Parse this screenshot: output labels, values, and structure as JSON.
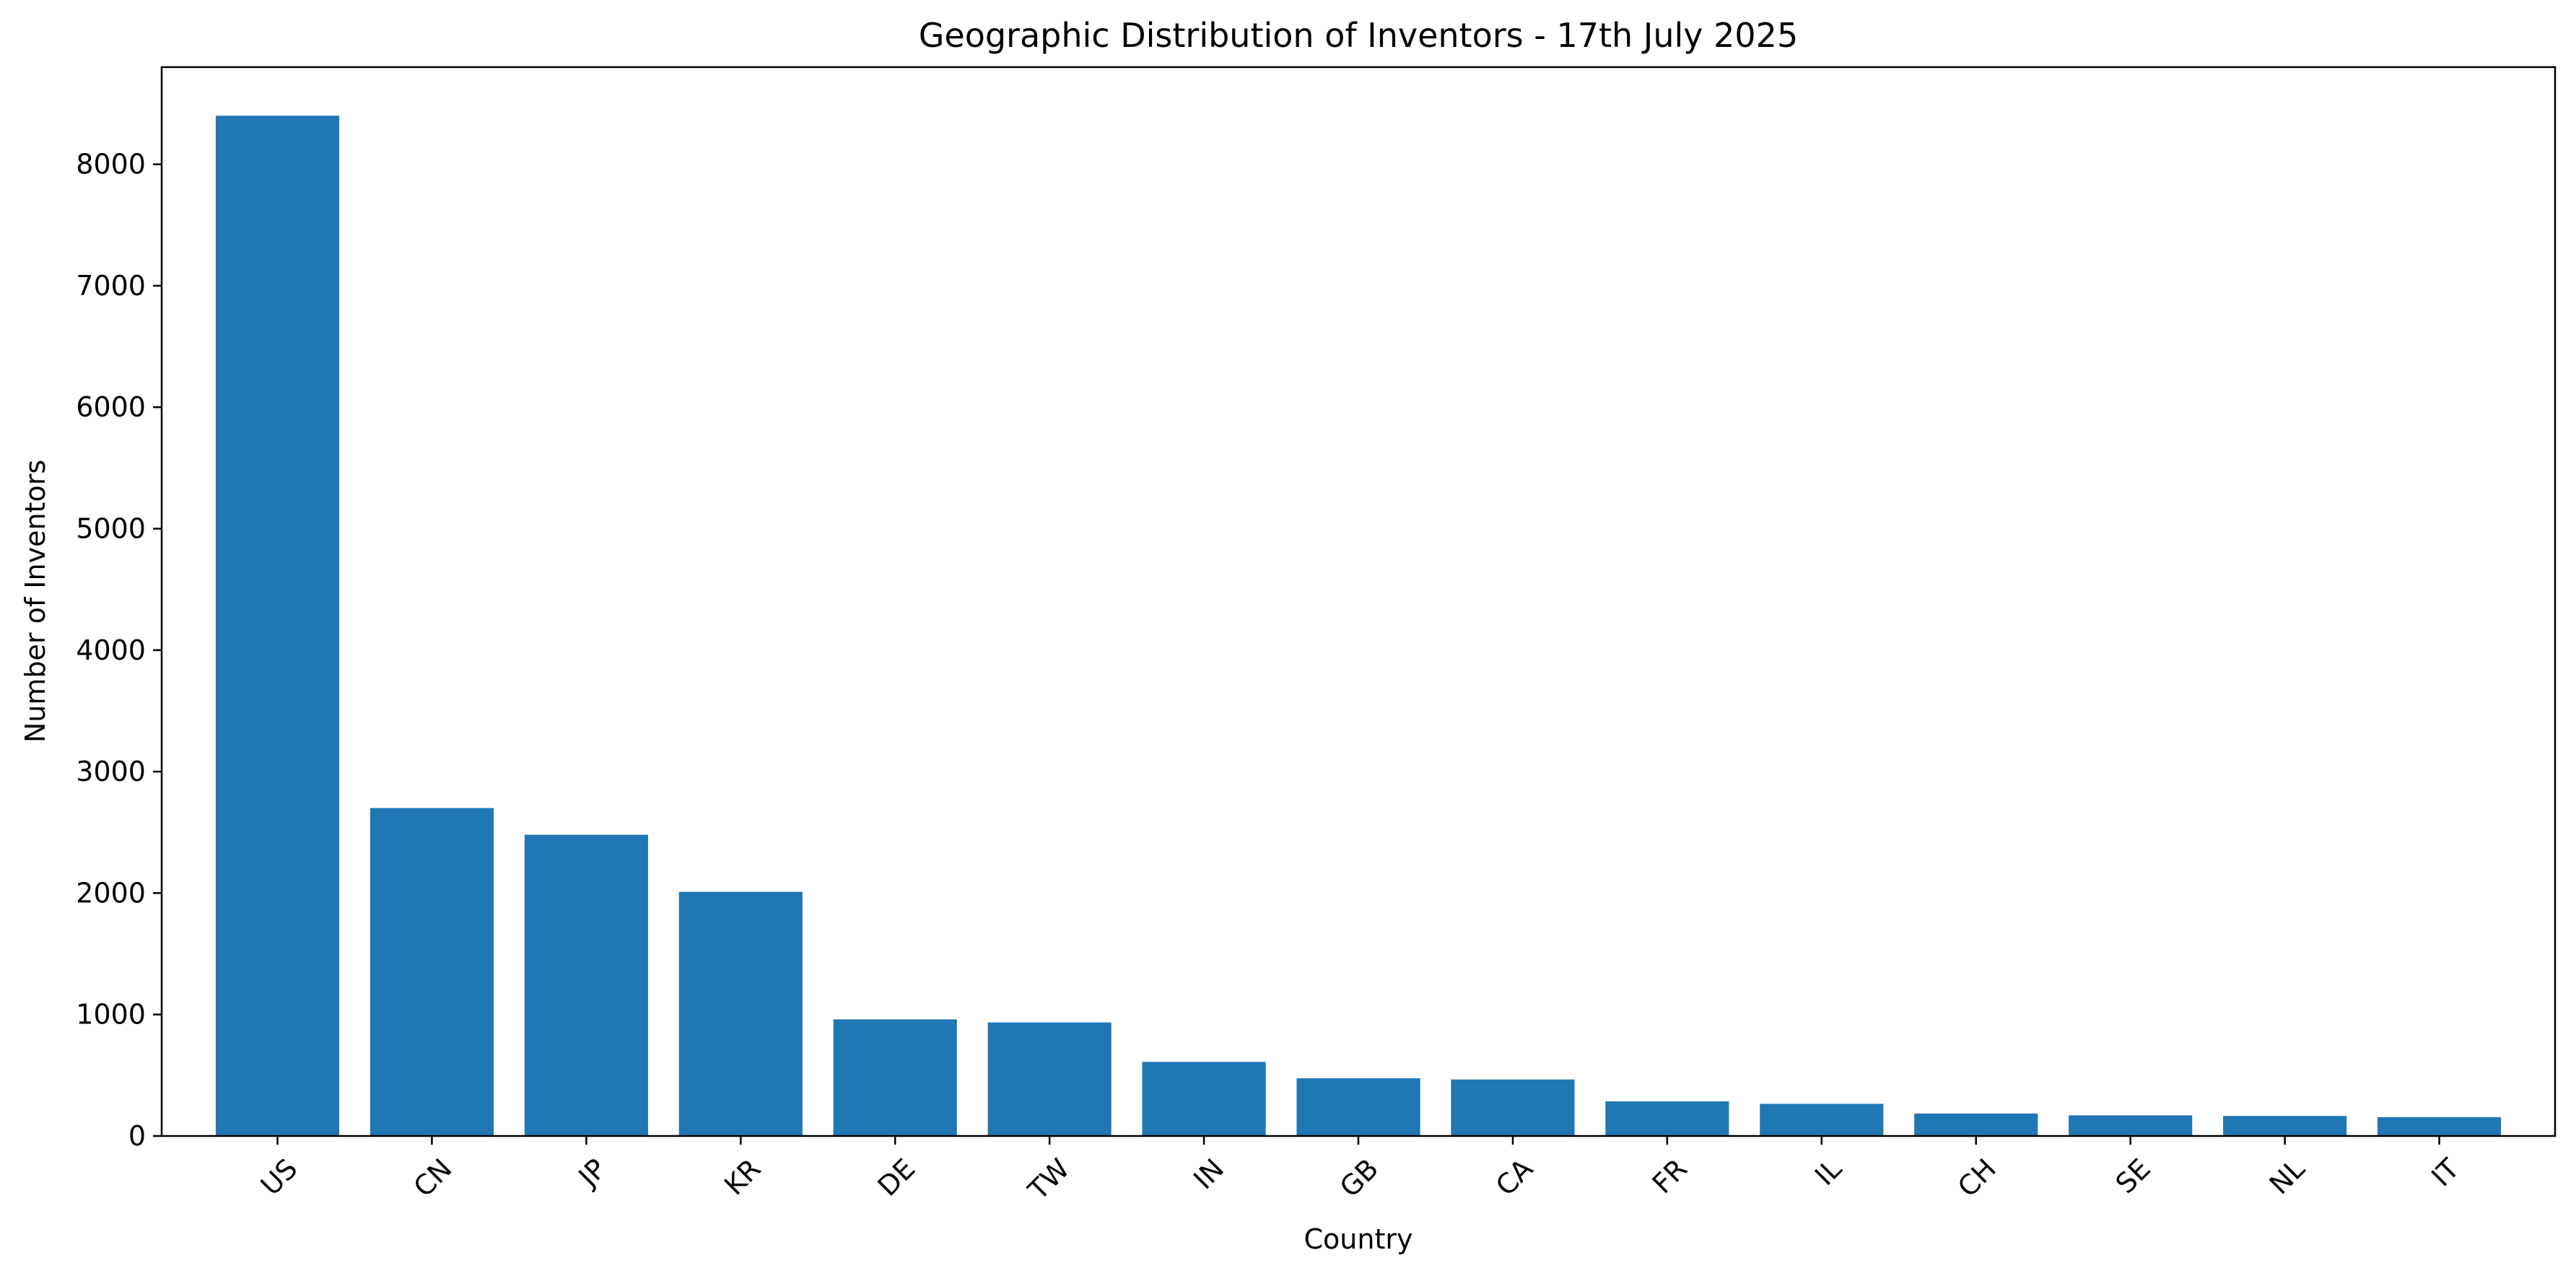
{
  "chart_data": {
    "type": "bar",
    "title": "Geographic Distribution of Inventors - 17th July 2025",
    "xlabel": "Country",
    "ylabel": "Number of Inventors",
    "categories": [
      "US",
      "CN",
      "JP",
      "KR",
      "DE",
      "TW",
      "IN",
      "GB",
      "CA",
      "FR",
      "IL",
      "CH",
      "SE",
      "NL",
      "IT"
    ],
    "values": [
      8400,
      2700,
      2480,
      2010,
      960,
      935,
      610,
      475,
      465,
      285,
      265,
      185,
      170,
      165,
      155
    ],
    "ylim": [
      0,
      8800
    ],
    "yticks": [
      0,
      1000,
      2000,
      3000,
      4000,
      5000,
      6000,
      7000,
      8000
    ],
    "xtick_rotation_deg": 45,
    "grid": false,
    "legend": "none",
    "bar_color": "#1f77b4",
    "axis_color": "#000000"
  }
}
